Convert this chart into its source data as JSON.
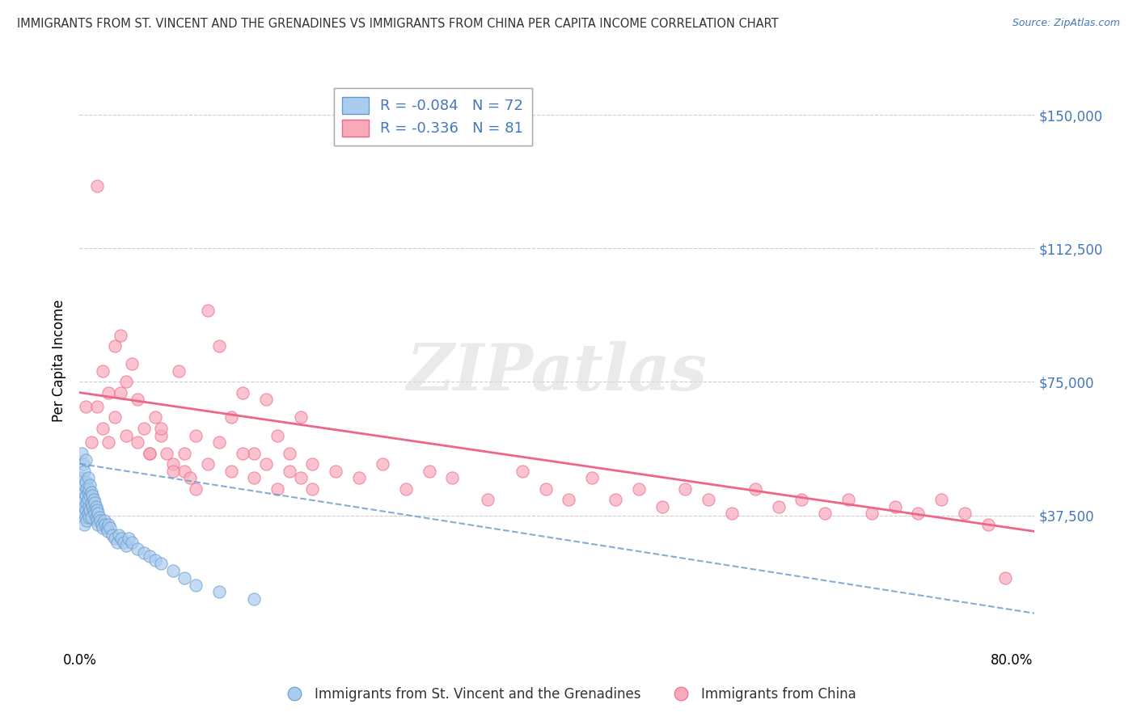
{
  "title": "IMMIGRANTS FROM ST. VINCENT AND THE GRENADINES VS IMMIGRANTS FROM CHINA PER CAPITA INCOME CORRELATION CHART",
  "source": "Source: ZipAtlas.com",
  "ylabel": "Per Capita Income",
  "yticks": [
    0,
    37500,
    75000,
    112500,
    150000
  ],
  "ytick_labels": [
    "",
    "$37,500",
    "$75,000",
    "$112,500",
    "$150,000"
  ],
  "ylim": [
    0,
    162000
  ],
  "xlim": [
    0.0,
    0.82
  ],
  "legend_r1": "R = -0.084   N = 72",
  "legend_r2": "R = -0.336   N = 81",
  "legend_label1": "Immigrants from St. Vincent and the Grenadines",
  "legend_label2": "Immigrants from China",
  "color_blue": "#aaccee",
  "color_pink": "#f8aabb",
  "color_blue_line": "#6699cc",
  "color_pink_line": "#ee6688",
  "color_blue_text": "#4477bb",
  "watermark": "ZIPatlas",
  "blue_trend_x": [
    0.0,
    0.82
  ],
  "blue_trend_y": [
    52000,
    10000
  ],
  "pink_trend_x": [
    0.0,
    0.82
  ],
  "pink_trend_y": [
    72000,
    33000
  ],
  "blue_scatter_x": [
    0.001,
    0.002,
    0.002,
    0.003,
    0.003,
    0.003,
    0.004,
    0.004,
    0.004,
    0.004,
    0.005,
    0.005,
    0.005,
    0.005,
    0.005,
    0.006,
    0.006,
    0.006,
    0.007,
    0.007,
    0.007,
    0.007,
    0.008,
    0.008,
    0.008,
    0.009,
    0.009,
    0.009,
    0.01,
    0.01,
    0.01,
    0.011,
    0.011,
    0.012,
    0.012,
    0.013,
    0.013,
    0.014,
    0.014,
    0.015,
    0.015,
    0.016,
    0.016,
    0.017,
    0.018,
    0.019,
    0.02,
    0.021,
    0.022,
    0.023,
    0.024,
    0.025,
    0.026,
    0.028,
    0.03,
    0.032,
    0.034,
    0.036,
    0.038,
    0.04,
    0.042,
    0.045,
    0.05,
    0.055,
    0.06,
    0.065,
    0.07,
    0.08,
    0.09,
    0.1,
    0.12,
    0.15
  ],
  "blue_scatter_y": [
    48000,
    42000,
    55000,
    38000,
    44000,
    52000,
    40000,
    46000,
    50000,
    35000,
    43000,
    47000,
    39000,
    53000,
    37000,
    41000,
    45000,
    36000,
    44000,
    48000,
    38000,
    42000,
    40000,
    45000,
    37000,
    43000,
    39000,
    46000,
    41000,
    44000,
    37000,
    40000,
    43000,
    39000,
    42000,
    38000,
    41000,
    37000,
    40000,
    36000,
    39000,
    35000,
    38000,
    37000,
    36000,
    35000,
    34000,
    36000,
    35000,
    34000,
    33000,
    35000,
    34000,
    32000,
    31000,
    30000,
    32000,
    31000,
    30000,
    29000,
    31000,
    30000,
    28000,
    27000,
    26000,
    25000,
    24000,
    22000,
    20000,
    18000,
    16000,
    14000
  ],
  "pink_scatter_x": [
    0.005,
    0.01,
    0.015,
    0.02,
    0.025,
    0.03,
    0.035,
    0.04,
    0.045,
    0.05,
    0.055,
    0.06,
    0.065,
    0.07,
    0.075,
    0.08,
    0.085,
    0.09,
    0.095,
    0.1,
    0.11,
    0.12,
    0.13,
    0.14,
    0.15,
    0.16,
    0.17,
    0.18,
    0.19,
    0.2,
    0.015,
    0.02,
    0.025,
    0.03,
    0.035,
    0.04,
    0.05,
    0.06,
    0.07,
    0.08,
    0.09,
    0.1,
    0.11,
    0.12,
    0.13,
    0.14,
    0.15,
    0.16,
    0.17,
    0.18,
    0.19,
    0.2,
    0.22,
    0.24,
    0.26,
    0.28,
    0.3,
    0.32,
    0.35,
    0.38,
    0.4,
    0.42,
    0.44,
    0.46,
    0.48,
    0.5,
    0.52,
    0.54,
    0.56,
    0.58,
    0.6,
    0.62,
    0.64,
    0.66,
    0.68,
    0.7,
    0.72,
    0.74,
    0.76,
    0.78,
    0.795
  ],
  "pink_scatter_y": [
    68000,
    58000,
    130000,
    78000,
    72000,
    85000,
    88000,
    75000,
    80000,
    70000,
    62000,
    55000,
    65000,
    60000,
    55000,
    52000,
    78000,
    50000,
    48000,
    45000,
    95000,
    85000,
    65000,
    72000,
    55000,
    70000,
    60000,
    55000,
    65000,
    52000,
    68000,
    62000,
    58000,
    65000,
    72000,
    60000,
    58000,
    55000,
    62000,
    50000,
    55000,
    60000,
    52000,
    58000,
    50000,
    55000,
    48000,
    52000,
    45000,
    50000,
    48000,
    45000,
    50000,
    48000,
    52000,
    45000,
    50000,
    48000,
    42000,
    50000,
    45000,
    42000,
    48000,
    42000,
    45000,
    40000,
    45000,
    42000,
    38000,
    45000,
    40000,
    42000,
    38000,
    42000,
    38000,
    40000,
    38000,
    42000,
    38000,
    35000,
    20000
  ]
}
